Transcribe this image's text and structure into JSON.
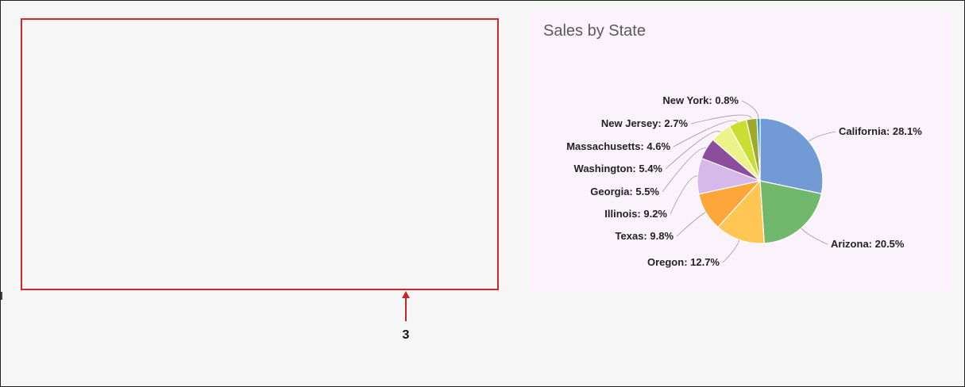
{
  "callout": {
    "number": "3"
  },
  "chart_data": {
    "type": "pie",
    "title": "Sales by State",
    "slices": [
      {
        "label": "California",
        "value": 28.1,
        "color": "#729bd6"
      },
      {
        "label": "Arizona",
        "value": 20.5,
        "color": "#72b86c"
      },
      {
        "label": "Oregon",
        "value": 12.7,
        "color": "#ffc654"
      },
      {
        "label": "Texas",
        "value": 9.8,
        "color": "#ffa63a"
      },
      {
        "label": "Illinois",
        "value": 9.2,
        "color": "#d6b8ea"
      },
      {
        "label": "Georgia",
        "value": 5.5,
        "color": "#8d4d9d"
      },
      {
        "label": "Washington",
        "value": 5.4,
        "color": "#eef28a"
      },
      {
        "label": "Massachusetts",
        "value": 4.6,
        "color": "#c9dd32"
      },
      {
        "label": "New Jersey",
        "value": 2.7,
        "color": "#9ea92a"
      },
      {
        "label": "New York",
        "value": 0.8,
        "color": "#2d9fd0"
      }
    ],
    "label_format": "{label}: {value}%"
  }
}
